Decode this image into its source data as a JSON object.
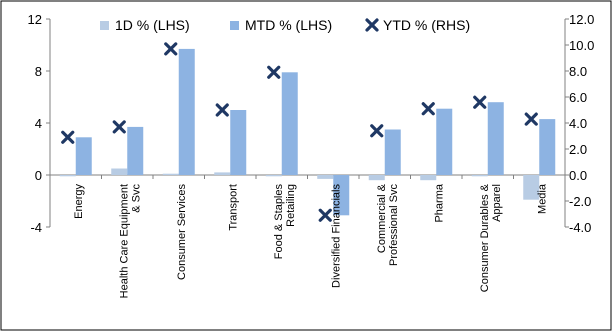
{
  "chart_data": {
    "type": "bar",
    "categories": [
      [
        "Energy"
      ],
      [
        "Health Care Equipment",
        "& Svc"
      ],
      [
        "Consumer Services"
      ],
      [
        "Transport"
      ],
      [
        "Food & Staples",
        "Retailing"
      ],
      [
        "Diversified Financials"
      ],
      [
        "Commercial &",
        "Professional Svc"
      ],
      [
        "Pharma"
      ],
      [
        "Consumer Durables &",
        "Apparel"
      ],
      [
        "Media"
      ]
    ],
    "series": [
      {
        "name": "1D % (LHS)",
        "axis": "left",
        "kind": "bar",
        "color": "#b8cce4",
        "values": [
          -0.1,
          0.5,
          0.1,
          0.2,
          -0.1,
          -0.3,
          -0.4,
          -0.4,
          -0.1,
          -1.9
        ]
      },
      {
        "name": "MTD % (LHS)",
        "axis": "left",
        "kind": "bar",
        "color": "#8db3e2",
        "values": [
          2.9,
          3.7,
          9.7,
          5.0,
          7.9,
          -3.1,
          3.5,
          5.1,
          5.6,
          4.3
        ]
      },
      {
        "name": "YTD % (RHS)",
        "axis": "right",
        "kind": "marker",
        "color": "#1f3864",
        "values": [
          2.9,
          3.7,
          9.7,
          5.0,
          7.9,
          -3.1,
          3.4,
          5.1,
          5.6,
          4.3
        ]
      }
    ],
    "left_axis": {
      "ticks": [
        "12",
        "8",
        "4",
        "0",
        "-4"
      ],
      "ylim": [
        -4,
        12
      ]
    },
    "right_axis": {
      "ticks": [
        "12.0",
        "10.0",
        "8.0",
        "6.0",
        "4.0",
        "2.0",
        "0.0",
        "-2.0",
        "-4.0"
      ],
      "ylim": [
        -4,
        12
      ]
    },
    "legend_position": "top",
    "grid": false
  }
}
